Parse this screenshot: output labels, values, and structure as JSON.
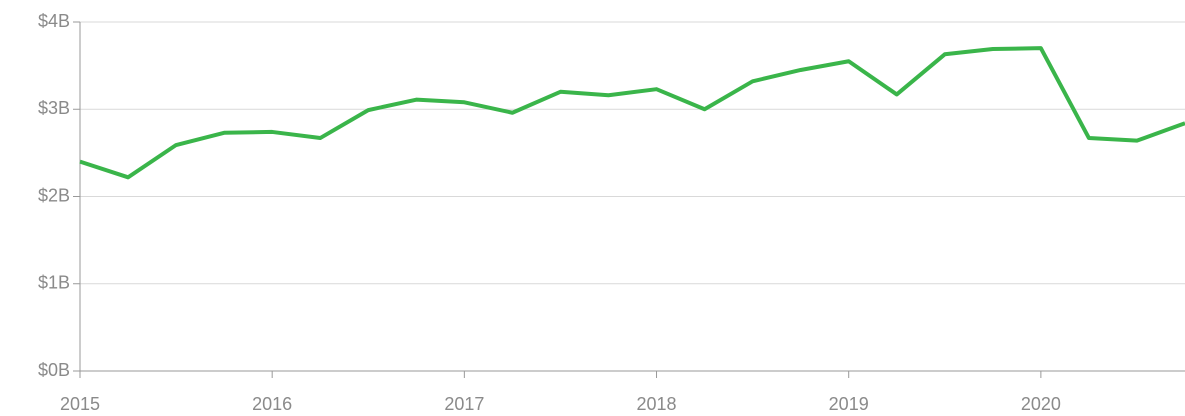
{
  "chart_data": {
    "type": "line",
    "x": [
      2015,
      2015.25,
      2015.5,
      2015.75,
      2016,
      2016.25,
      2016.5,
      2016.75,
      2017,
      2017.25,
      2017.5,
      2017.75,
      2018,
      2018.25,
      2018.5,
      2018.75,
      2019,
      2019.25,
      2019.5,
      2019.75,
      2020,
      2020.25,
      2020.5,
      2020.75
    ],
    "values": [
      2.4,
      2.22,
      2.59,
      2.73,
      2.74,
      2.67,
      2.99,
      3.11,
      3.08,
      2.96,
      3.2,
      3.16,
      3.23,
      3.0,
      3.32,
      3.45,
      3.55,
      3.17,
      3.63,
      3.69,
      3.7,
      2.67,
      2.64,
      2.84
    ],
    "color": "#3ab54a",
    "xlim": [
      2015,
      2020.75
    ],
    "xticks": [
      2015,
      2016,
      2017,
      2018,
      2019,
      2020
    ],
    "ylim": [
      0,
      4
    ],
    "yticks": [
      {
        "value": 0,
        "label": "$0B"
      },
      {
        "value": 1,
        "label": "$1B"
      },
      {
        "value": 2,
        "label": "$2B"
      },
      {
        "value": 3,
        "label": "$3B"
      },
      {
        "value": 4,
        "label": "$4B"
      }
    ],
    "grid": true
  }
}
